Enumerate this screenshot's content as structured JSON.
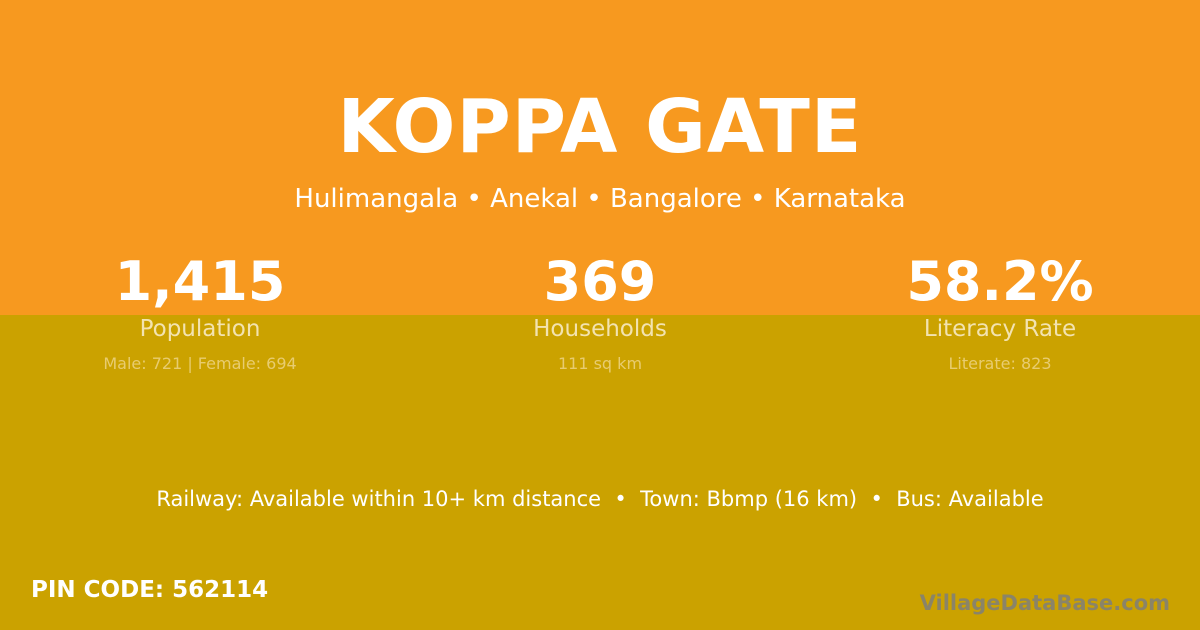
{
  "colors": {
    "top": "#F7991F",
    "bottom": "#CBA200"
  },
  "title": "KOPPA GATE",
  "subtitle": "Hulimangala • Anekal • Bangalore • Karnataka",
  "stats": [
    {
      "value": "1,415",
      "label": "Population",
      "detail": "Male: 721 | Female: 694"
    },
    {
      "value": "369",
      "label": "Households",
      "detail": "111 sq km"
    },
    {
      "value": "58.2%",
      "label": "Literacy Rate",
      "detail": "Literate: 823"
    }
  ],
  "facts": "Railway: Available within 10+ km distance  •  Town: Bbmp (16 km)  •  Bus: Available",
  "pin": "PIN CODE: 562114",
  "brand": "VillageDataBase.com"
}
